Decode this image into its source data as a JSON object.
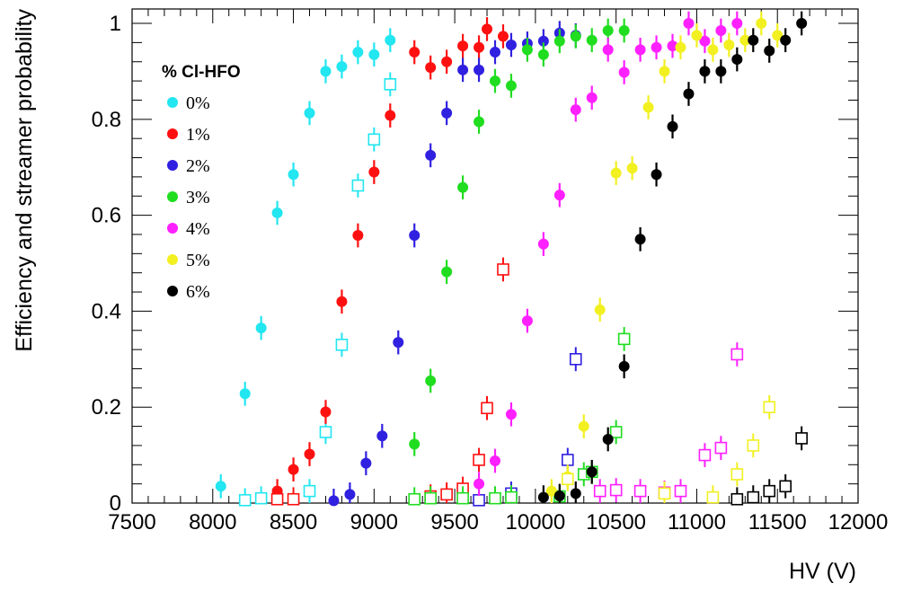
{
  "chart_data": {
    "type": "scatter",
    "title": "",
    "xlabel": "HV (V)",
    "ylabel": "Efficiency and streamer probability",
    "xlim": [
      7500,
      12000
    ],
    "ylim": [
      0,
      1.03
    ],
    "x_ticks": [
      7500,
      8000,
      8500,
      9000,
      9500,
      10000,
      10500,
      11000,
      11500,
      12000
    ],
    "y_ticks": [
      0,
      0.2,
      0.4,
      0.6,
      0.8,
      1
    ],
    "x_tick_labels": [
      "7500",
      "8000",
      "8500",
      "9000",
      "9500",
      "10000",
      "10500",
      "11000",
      "11500",
      "12000"
    ],
    "y_tick_labels": [
      "0",
      "0.2",
      "0.4",
      "0.6",
      "0.8",
      "1"
    ],
    "grid": false,
    "legend_title": "% Cl-HFO",
    "legend_position": "top-left",
    "series": [
      {
        "name": "0%",
        "color": "#22e6f0",
        "efficiency": [
          [
            8050,
            0.035
          ],
          [
            8200,
            0.228
          ],
          [
            8300,
            0.365
          ],
          [
            8400,
            0.605
          ],
          [
            8500,
            0.685
          ],
          [
            8600,
            0.813
          ],
          [
            8700,
            0.9
          ],
          [
            8800,
            0.91
          ],
          [
            8900,
            0.94
          ],
          [
            9000,
            0.935
          ],
          [
            9100,
            0.965
          ]
        ],
        "streamer": [
          [
            8200,
            0.006
          ],
          [
            8300,
            0.01
          ],
          [
            8600,
            0.025
          ],
          [
            8700,
            0.148
          ],
          [
            8800,
            0.33
          ],
          [
            8900,
            0.662
          ],
          [
            9000,
            0.758
          ],
          [
            9100,
            0.873
          ]
        ]
      },
      {
        "name": "1%",
        "color": "#ff1010",
        "efficiency": [
          [
            8400,
            0.025
          ],
          [
            8500,
            0.07
          ],
          [
            8600,
            0.102
          ],
          [
            8700,
            0.19
          ],
          [
            8800,
            0.42
          ],
          [
            8900,
            0.558
          ],
          [
            9000,
            0.69
          ],
          [
            9100,
            0.808
          ],
          [
            9250,
            0.94
          ],
          [
            9350,
            0.908
          ],
          [
            9450,
            0.92
          ],
          [
            9550,
            0.953
          ],
          [
            9650,
            0.95
          ],
          [
            9700,
            0.988
          ],
          [
            9800,
            0.973
          ]
        ],
        "streamer": [
          [
            8400,
            0.008
          ],
          [
            8500,
            0.008
          ],
          [
            9350,
            0.014
          ],
          [
            9450,
            0.018
          ],
          [
            9550,
            0.03
          ],
          [
            9650,
            0.09
          ],
          [
            9700,
            0.198
          ],
          [
            9800,
            0.487
          ]
        ]
      },
      {
        "name": "2%",
        "color": "#3020e0",
        "efficiency": [
          [
            8750,
            0.005
          ],
          [
            8850,
            0.018
          ],
          [
            8950,
            0.083
          ],
          [
            9050,
            0.14
          ],
          [
            9150,
            0.335
          ],
          [
            9250,
            0.558
          ],
          [
            9350,
            0.725
          ],
          [
            9450,
            0.813
          ],
          [
            9550,
            0.903
          ],
          [
            9650,
            0.903
          ],
          [
            9750,
            0.94
          ],
          [
            9850,
            0.955
          ],
          [
            9950,
            0.958
          ],
          [
            10050,
            0.963
          ],
          [
            10150,
            0.98
          ],
          [
            10250,
            0.975
          ]
        ],
        "streamer": [
          [
            9650,
            0.006
          ],
          [
            9850,
            0.02
          ],
          [
            10200,
            0.09
          ],
          [
            10250,
            0.3
          ]
        ]
      },
      {
        "name": "3%",
        "color": "#20dd20",
        "efficiency": [
          [
            9250,
            0.123
          ],
          [
            9350,
            0.255
          ],
          [
            9450,
            0.482
          ],
          [
            9550,
            0.658
          ],
          [
            9650,
            0.795
          ],
          [
            9750,
            0.88
          ],
          [
            9850,
            0.87
          ],
          [
            9950,
            0.945
          ],
          [
            10050,
            0.935
          ],
          [
            10150,
            0.963
          ],
          [
            10250,
            0.973
          ],
          [
            10350,
            0.965
          ],
          [
            10450,
            0.985
          ],
          [
            10550,
            0.985
          ]
        ],
        "streamer": [
          [
            9250,
            0.008
          ],
          [
            9350,
            0.01
          ],
          [
            9550,
            0.01
          ],
          [
            9750,
            0.01
          ],
          [
            9850,
            0.012
          ],
          [
            10150,
            0.014
          ],
          [
            10300,
            0.06
          ],
          [
            10350,
            0.065
          ],
          [
            10500,
            0.148
          ],
          [
            10550,
            0.342
          ]
        ]
      },
      {
        "name": "4%",
        "color": "#ff20ff",
        "efficiency": [
          [
            9650,
            0.04
          ],
          [
            9750,
            0.088
          ],
          [
            9850,
            0.185
          ],
          [
            9950,
            0.38
          ],
          [
            10050,
            0.54
          ],
          [
            10150,
            0.642
          ],
          [
            10250,
            0.82
          ],
          [
            10350,
            0.845
          ],
          [
            10450,
            0.945
          ],
          [
            10550,
            0.898
          ],
          [
            10650,
            0.945
          ],
          [
            10750,
            0.95
          ],
          [
            10850,
            0.953
          ],
          [
            10950,
            1.0
          ],
          [
            11050,
            0.963
          ],
          [
            11150,
            0.985
          ],
          [
            11250,
            1.0
          ]
        ],
        "streamer": [
          [
            10400,
            0.025
          ],
          [
            10500,
            0.027
          ],
          [
            10650,
            0.025
          ],
          [
            10800,
            0.022
          ],
          [
            10900,
            0.025
          ],
          [
            11050,
            0.1
          ],
          [
            11150,
            0.115
          ],
          [
            11250,
            0.31
          ]
        ]
      },
      {
        "name": "5%",
        "color": "#f2f020",
        "efficiency": [
          [
            10100,
            0.025
          ],
          [
            10200,
            0.055
          ],
          [
            10300,
            0.16
          ],
          [
            10400,
            0.403
          ],
          [
            10500,
            0.688
          ],
          [
            10600,
            0.698
          ],
          [
            10700,
            0.825
          ],
          [
            10800,
            0.9
          ],
          [
            10900,
            0.95
          ],
          [
            11000,
            0.975
          ],
          [
            11100,
            0.945
          ],
          [
            11200,
            0.955
          ],
          [
            11300,
            0.965
          ],
          [
            11400,
            1.0
          ],
          [
            11500,
            0.975
          ]
        ],
        "streamer": [
          [
            10200,
            0.05
          ],
          [
            10800,
            0.02
          ],
          [
            11100,
            0.012
          ],
          [
            11250,
            0.06
          ],
          [
            11350,
            0.12
          ],
          [
            11450,
            0.2
          ]
        ]
      },
      {
        "name": "6%",
        "color": "#000000",
        "efficiency": [
          [
            10050,
            0.012
          ],
          [
            10150,
            0.015
          ],
          [
            10250,
            0.02
          ],
          [
            10350,
            0.065
          ],
          [
            10450,
            0.133
          ],
          [
            10550,
            0.285
          ],
          [
            10650,
            0.55
          ],
          [
            10750,
            0.685
          ],
          [
            10850,
            0.785
          ],
          [
            10950,
            0.853
          ],
          [
            11050,
            0.9
          ],
          [
            11150,
            0.9
          ],
          [
            11250,
            0.925
          ],
          [
            11350,
            0.965
          ],
          [
            11450,
            0.943
          ],
          [
            11550,
            0.965
          ],
          [
            11650,
            1.0
          ]
        ],
        "streamer": [
          [
            11250,
            0.008
          ],
          [
            11350,
            0.012
          ],
          [
            11450,
            0.025
          ],
          [
            11550,
            0.035
          ],
          [
            11650,
            0.135
          ]
        ]
      }
    ]
  }
}
